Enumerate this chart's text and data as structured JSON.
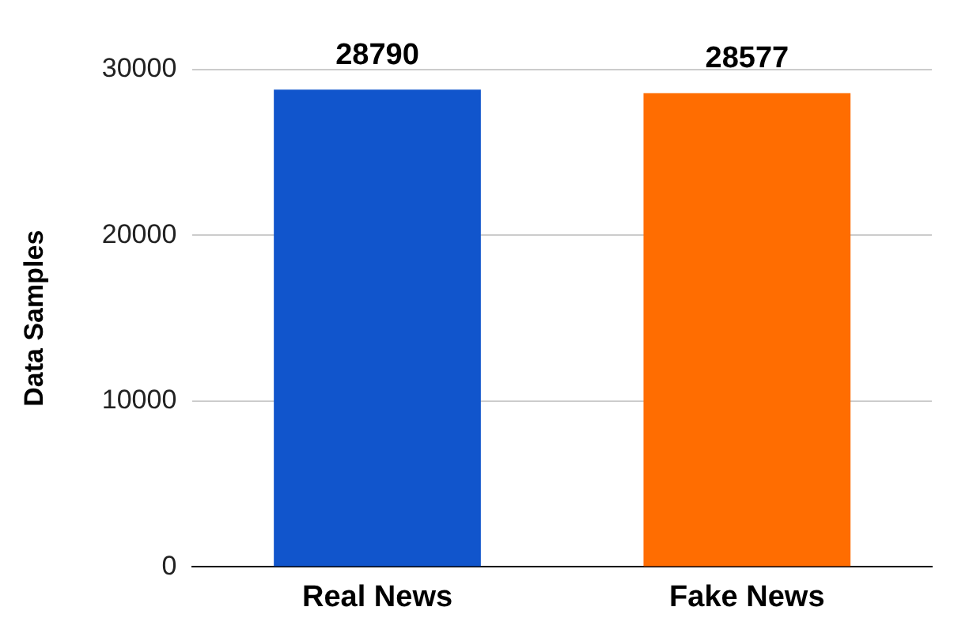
{
  "chart_data": {
    "type": "bar",
    "ylabel": "Data Samples",
    "categories": [
      "Real News",
      "Fake News"
    ],
    "values": [
      28790,
      28577
    ],
    "colors": [
      "#1155cc",
      "#ff6d01"
    ],
    "ylim": [
      0,
      30000
    ],
    "yticks": [
      0,
      10000,
      20000,
      30000
    ],
    "grid": "y",
    "data_labels": true,
    "legend": false
  }
}
